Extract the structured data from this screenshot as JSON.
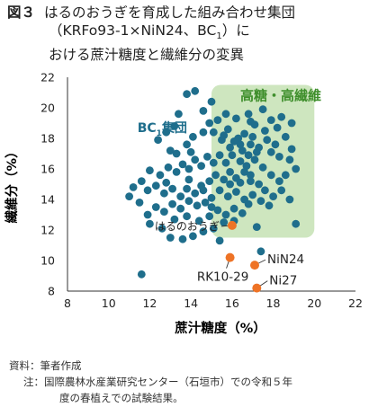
{
  "figure": {
    "label": "図３",
    "title_line1": "はるのおうぎを育成した組み合わせ集団",
    "title_line2_a": "（KRFo93-1×NiN24、BC",
    "title_line2_sub": "1",
    "title_line2_b": "）に",
    "title_line3": "おける蔗汁糖度と繊維分の変異"
  },
  "notes": {
    "source": "資料：筆者作成",
    "note1": "注：国際農林水産業研究センター（石垣市）での令和５年",
    "note2": "度の春植えでの試験結果。"
  },
  "chart_data": {
    "type": "scatter",
    "xlabel": "蔗汁糖度（%）",
    "ylabel": "繊維分（%）",
    "xlim": [
      8,
      22
    ],
    "ylim": [
      8,
      22
    ],
    "xticks": [
      "8",
      "10",
      "12",
      "14",
      "16",
      "18",
      "20",
      "22"
    ],
    "yticks": [
      "8",
      "10",
      "12",
      "14",
      "16",
      "18",
      "20",
      "22"
    ],
    "grid": false,
    "colors": {
      "bc1": "#1f6e8c",
      "parents": "#ee7326",
      "highlight": "#c6e2b4",
      "highlight_text": "#3f8f2c",
      "bc1_text": "#1f6e8c"
    },
    "highlight_region": {
      "label": "高糖・高繊維",
      "x": [
        15,
        20
      ],
      "y": [
        11.5,
        21.5
      ]
    },
    "group_label": {
      "main": "BC",
      "sub": "1",
      "tail": "集団"
    },
    "series": [
      {
        "name": "BC1集団",
        "points": [
          [
            13.8,
            20.9
          ],
          [
            14.2,
            21.1
          ],
          [
            15.0,
            20.4
          ],
          [
            14.6,
            19.8
          ],
          [
            13.4,
            19.6
          ],
          [
            13.2,
            18.8
          ],
          [
            12.8,
            18.4
          ],
          [
            12.4,
            17.9
          ],
          [
            13.0,
            17.2
          ],
          [
            13.8,
            17.6
          ],
          [
            14.1,
            18.1
          ],
          [
            14.6,
            18.4
          ],
          [
            14.9,
            19.0
          ],
          [
            15.3,
            19.2
          ],
          [
            15.1,
            18.4
          ],
          [
            15.5,
            17.9
          ],
          [
            15.8,
            18.6
          ],
          [
            16.2,
            19.3
          ],
          [
            16.8,
            19.6
          ],
          [
            17.5,
            19.9
          ],
          [
            17.9,
            19.2
          ],
          [
            18.2,
            18.7
          ],
          [
            18.6,
            18.1
          ],
          [
            18.9,
            19.0
          ],
          [
            18.4,
            19.4
          ],
          [
            17.1,
            18.9
          ],
          [
            16.6,
            18.3
          ],
          [
            16.1,
            17.8
          ],
          [
            16.5,
            17.2
          ],
          [
            16.9,
            17.6
          ],
          [
            17.3,
            17.4
          ],
          [
            17.7,
            17.9
          ],
          [
            17.9,
            17.1
          ],
          [
            18.3,
            16.8
          ],
          [
            18.8,
            16.6
          ],
          [
            19.1,
            16.0
          ],
          [
            18.6,
            15.6
          ],
          [
            18.3,
            15.2
          ],
          [
            17.9,
            15.6
          ],
          [
            17.5,
            16.1
          ],
          [
            17.1,
            16.6
          ],
          [
            16.8,
            16.9
          ],
          [
            16.4,
            16.5
          ],
          [
            16.0,
            16.9
          ],
          [
            15.7,
            16.4
          ],
          [
            15.4,
            16.9
          ],
          [
            15.1,
            16.4
          ],
          [
            14.8,
            16.8
          ],
          [
            14.5,
            16.2
          ],
          [
            14.2,
            16.6
          ],
          [
            13.9,
            16.0
          ],
          [
            13.6,
            16.3
          ],
          [
            13.3,
            15.8
          ],
          [
            12.9,
            16.1
          ],
          [
            12.5,
            15.6
          ],
          [
            12.0,
            15.9
          ],
          [
            11.6,
            15.2
          ],
          [
            11.2,
            14.8
          ],
          [
            11.9,
            14.6
          ],
          [
            12.3,
            14.9
          ],
          [
            12.7,
            14.4
          ],
          [
            13.1,
            14.7
          ],
          [
            13.5,
            14.2
          ],
          [
            13.8,
            14.7
          ],
          [
            14.2,
            14.4
          ],
          [
            14.5,
            14.9
          ],
          [
            14.9,
            15.2
          ],
          [
            15.2,
            15.6
          ],
          [
            15.6,
            15.3
          ],
          [
            15.9,
            15.8
          ],
          [
            16.2,
            15.4
          ],
          [
            16.6,
            15.8
          ],
          [
            16.9,
            15.2
          ],
          [
            17.3,
            15.0
          ],
          [
            17.6,
            14.6
          ],
          [
            18.0,
            14.2
          ],
          [
            18.4,
            14.6
          ],
          [
            18.8,
            14.0
          ],
          [
            17.8,
            13.6
          ],
          [
            17.4,
            13.9
          ],
          [
            17.0,
            14.3
          ],
          [
            16.6,
            14.0
          ],
          [
            16.2,
            14.5
          ],
          [
            15.8,
            14.2
          ],
          [
            15.4,
            14.6
          ],
          [
            15.0,
            14.1
          ],
          [
            14.7,
            13.8
          ],
          [
            14.3,
            13.6
          ],
          [
            13.9,
            13.9
          ],
          [
            13.5,
            13.4
          ],
          [
            13.1,
            13.7
          ],
          [
            12.7,
            13.2
          ],
          [
            12.3,
            13.5
          ],
          [
            11.9,
            13.0
          ],
          [
            11.5,
            13.8
          ],
          [
            11.0,
            14.2
          ],
          [
            12.0,
            12.4
          ],
          [
            12.6,
            12.1
          ],
          [
            13.2,
            12.7
          ],
          [
            13.8,
            12.9
          ],
          [
            14.4,
            12.6
          ],
          [
            14.9,
            12.9
          ],
          [
            15.3,
            13.3
          ],
          [
            15.7,
            13.0
          ],
          [
            16.1,
            13.4
          ],
          [
            16.5,
            13.1
          ],
          [
            16.1,
            12.6
          ],
          [
            15.6,
            12.5
          ],
          [
            15.1,
            12.1
          ],
          [
            14.6,
            11.9
          ],
          [
            14.1,
            11.6
          ],
          [
            13.6,
            11.4
          ],
          [
            13.0,
            11.5
          ],
          [
            15.4,
            11.3
          ],
          [
            11.6,
            9.1
          ],
          [
            19.1,
            12.4
          ],
          [
            17.4,
            10.6
          ],
          [
            17.2,
            12.2
          ],
          [
            16.8,
            13.7
          ],
          [
            16.4,
            15.1
          ],
          [
            16.7,
            16.2
          ],
          [
            17.2,
            17.1
          ],
          [
            15.9,
            17.4
          ],
          [
            15.6,
            18.2
          ],
          [
            16.3,
            18.0
          ],
          [
            17.0,
            18.1
          ],
          [
            17.6,
            18.5
          ],
          [
            18.1,
            17.6
          ],
          [
            18.9,
            17.3
          ],
          [
            16.9,
            15.6
          ],
          [
            15.9,
            15.0
          ],
          [
            15.0,
            13.5
          ],
          [
            14.6,
            14.6
          ],
          [
            13.9,
            15.3
          ],
          [
            12.8,
            15.1
          ],
          [
            16.4,
            17.6
          ],
          [
            16.9,
            19.1
          ],
          [
            15.7,
            19.6
          ],
          [
            13.3,
            17.0
          ],
          [
            14.0,
            17.1
          ]
        ]
      },
      {
        "name": "parents",
        "points": [
          {
            "label": "はるのおうぎ",
            "x": 16.0,
            "y": 12.3
          },
          {
            "label": "RK10-29",
            "x": 15.9,
            "y": 10.2
          },
          {
            "label": "NiN24",
            "x": 17.1,
            "y": 9.7
          },
          {
            "label": "Ni27",
            "x": 17.2,
            "y": 8.2
          }
        ]
      }
    ]
  }
}
